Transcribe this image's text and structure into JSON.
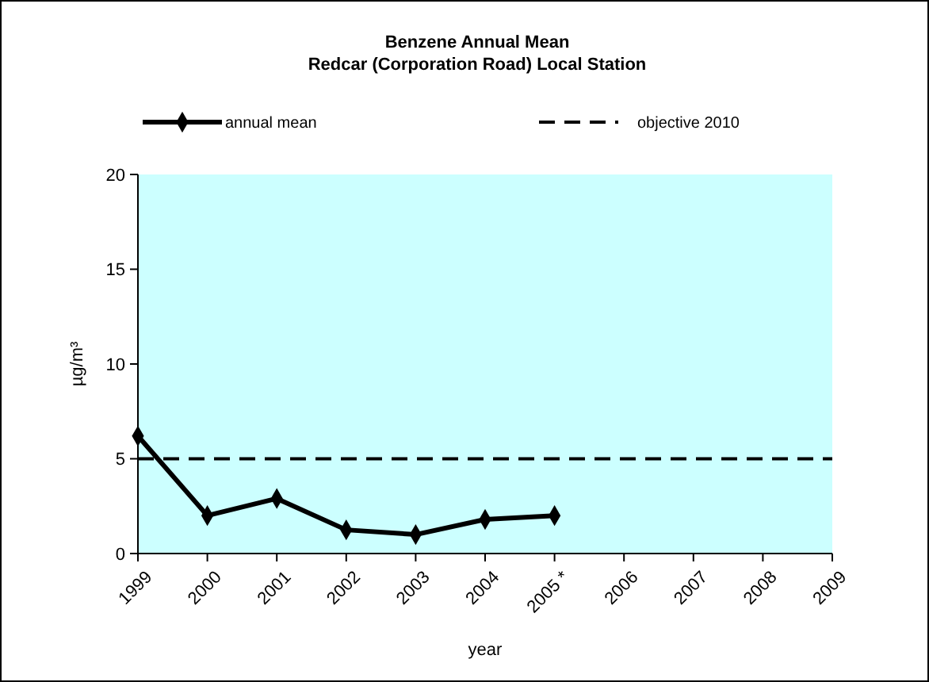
{
  "chart_data": {
    "type": "line",
    "title": "Benzene Annual Mean\nRedcar (Corporation Road) Local Station",
    "xlabel": "year",
    "ylabel": "µg/m³",
    "categories": [
      "1999",
      "2000",
      "2001",
      "2002",
      "2003",
      "2004",
      "2005 *",
      "2006",
      "2007",
      "2008",
      "2009"
    ],
    "series": [
      {
        "name": "annual mean",
        "color": "#000000",
        "values": [
          6.2,
          2.0,
          2.9,
          1.25,
          1.0,
          1.8,
          2.0,
          null,
          null,
          null,
          null
        ]
      }
    ],
    "ref_lines": [
      {
        "axis": "y",
        "value": 5,
        "label": "objective 2010",
        "color": "#000000",
        "line_style": "dashed"
      }
    ],
    "ylim": [
      0,
      20
    ],
    "yticks": [
      0,
      5,
      10,
      15,
      20
    ],
    "grid": false,
    "legend": "top",
    "marker": "diamond",
    "line_style": "solid"
  }
}
